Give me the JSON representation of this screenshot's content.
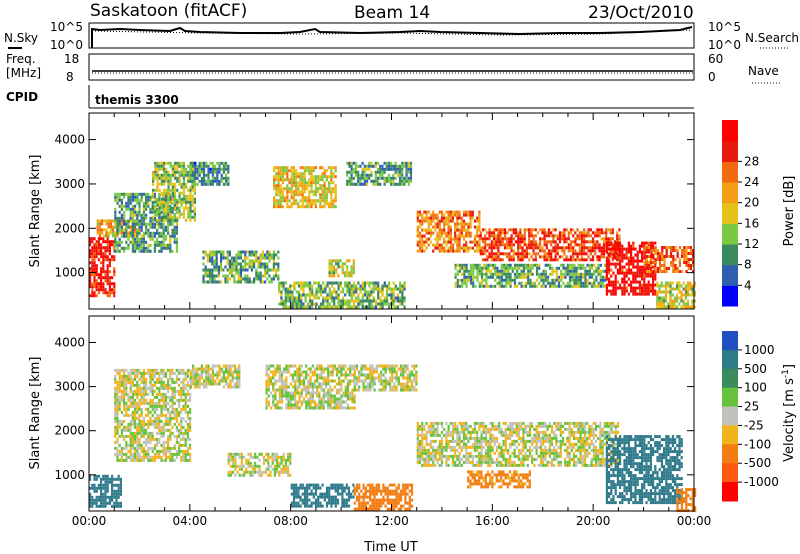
{
  "header": {
    "title": "Saskatoon (fitACF)",
    "beam": "Beam 14",
    "date": "23/Oct/2010"
  },
  "sky_panel": {
    "left_label": "N.Sky",
    "left_top": "10^5",
    "left_bottom": "10^0",
    "right_top": "10^5",
    "right_bottom": "10^0",
    "right_label": "N.Search"
  },
  "freq_panel": {
    "left_label_1": "Freq.",
    "left_label_2": "[MHz]",
    "left_top": "18",
    "left_bottom": "8",
    "right_top": "60",
    "right_bottom": "0",
    "right_label": "Nave"
  },
  "cpid_panel": {
    "label": "CPID",
    "program": "themis 3300"
  },
  "colors": {
    "power_scale": [
      "#0000ff",
      "#2f5fb0",
      "#3a8a5e",
      "#7ac943",
      "#e6c21a",
      "#f59d16",
      "#f26a10",
      "#e81a0d",
      "#ff0000"
    ],
    "velocity_scale": [
      "#1f4fc0",
      "#2f7a8a",
      "#3b8c5c",
      "#66c23a",
      "#c2c2bc",
      "#f0b41e",
      "#f37d12",
      "#ff5a10",
      "#ff0000"
    ]
  },
  "chart_data": [
    {
      "type": "heatmap",
      "title": "",
      "quantity": "Power",
      "xlabel": "",
      "ylabel": "Slant Range [km]",
      "xlim_hours": [
        0,
        24
      ],
      "ylim_km": [
        180,
        4600
      ],
      "y_ticks": [
        "1000",
        "2000",
        "3000",
        "4000"
      ],
      "colorbar": {
        "label": "Power [dB]",
        "ticks": [
          "4",
          "8",
          "12",
          "16",
          "20",
          "24",
          "28"
        ],
        "range": [
          0,
          30
        ]
      },
      "regions": [
        {
          "t0": 0.0,
          "t1": 1.0,
          "r0": 500,
          "r1": 1800,
          "level": 26
        },
        {
          "t0": 0.3,
          "t1": 2.0,
          "r0": 1800,
          "r1": 2200,
          "level": 18
        },
        {
          "t0": 1.0,
          "t1": 3.5,
          "r0": 1500,
          "r1": 2800,
          "level": 9
        },
        {
          "t0": 2.5,
          "t1": 4.2,
          "r0": 2200,
          "r1": 3500,
          "level": 12
        },
        {
          "t0": 4.0,
          "t1": 5.5,
          "r0": 3000,
          "r1": 3500,
          "level": 8
        },
        {
          "t0": 7.3,
          "t1": 9.8,
          "r0": 2500,
          "r1": 3400,
          "level": 16
        },
        {
          "t0": 10.2,
          "t1": 12.8,
          "r0": 3000,
          "r1": 3500,
          "level": 9
        },
        {
          "t0": 4.5,
          "t1": 7.5,
          "r0": 800,
          "r1": 1500,
          "level": 10
        },
        {
          "t0": 7.5,
          "t1": 12.5,
          "r0": 250,
          "r1": 800,
          "level": 11
        },
        {
          "t0": 9.5,
          "t1": 10.5,
          "r0": 900,
          "r1": 1300,
          "level": 14
        },
        {
          "t0": 13.0,
          "t1": 15.5,
          "r0": 1500,
          "r1": 2400,
          "level": 20
        },
        {
          "t0": 15.5,
          "t1": 21.0,
          "r0": 1300,
          "r1": 2000,
          "level": 24
        },
        {
          "t0": 14.5,
          "t1": 20.5,
          "r0": 700,
          "r1": 1200,
          "level": 10
        },
        {
          "t0": 20.5,
          "t1": 22.5,
          "r0": 500,
          "r1": 1700,
          "level": 28
        },
        {
          "t0": 22.0,
          "t1": 24.0,
          "r0": 1000,
          "r1": 1600,
          "level": 22
        },
        {
          "t0": 22.5,
          "t1": 24.0,
          "r0": 200,
          "r1": 800,
          "level": 14
        }
      ]
    },
    {
      "type": "heatmap",
      "title": "",
      "quantity": "Velocity",
      "xlabel": "Time UT",
      "ylabel": "Slant Range [km]",
      "xlim_hours": [
        0,
        24
      ],
      "ylim_km": [
        180,
        4600
      ],
      "y_ticks": [
        "1000",
        "2000",
        "3000",
        "4000"
      ],
      "x_ticks": [
        "00:00",
        "04:00",
        "08:00",
        "12:00",
        "16:00",
        "20:00",
        "00:00"
      ],
      "colorbar": {
        "label": "Velocity [m s^-1]",
        "ticks": [
          "1000",
          "500",
          "100",
          "25",
          "-25",
          "-100",
          "-500",
          "-1000"
        ],
        "range": [
          -1000,
          1000
        ]
      },
      "regions": [
        {
          "t0": 0.0,
          "t1": 1.3,
          "r0": 300,
          "r1": 1000,
          "level": 300
        },
        {
          "t0": 1.0,
          "t1": 4.0,
          "r0": 1300,
          "r1": 3400,
          "level": 0
        },
        {
          "t0": 4.0,
          "t1": 6.0,
          "r0": 3000,
          "r1": 3500,
          "level": 0
        },
        {
          "t0": 7.0,
          "t1": 10.5,
          "r0": 2500,
          "r1": 3500,
          "level": 0
        },
        {
          "t0": 10.5,
          "t1": 13.0,
          "r0": 2900,
          "r1": 3500,
          "level": 0
        },
        {
          "t0": 5.5,
          "t1": 8.0,
          "r0": 1000,
          "r1": 1500,
          "level": 0
        },
        {
          "t0": 8.0,
          "t1": 10.5,
          "r0": 300,
          "r1": 800,
          "level": 200
        },
        {
          "t0": 10.5,
          "t1": 12.8,
          "r0": 250,
          "r1": 800,
          "level": -300
        },
        {
          "t0": 13.0,
          "t1": 21.0,
          "r0": 1200,
          "r1": 2200,
          "level": 0
        },
        {
          "t0": 15.0,
          "t1": 17.5,
          "r0": 700,
          "r1": 1100,
          "level": -150
        },
        {
          "t0": 20.5,
          "t1": 23.5,
          "r0": 400,
          "r1": 1900,
          "level": 400
        },
        {
          "t0": 23.3,
          "t1": 24.0,
          "r0": 200,
          "r1": 700,
          "level": -400
        }
      ]
    }
  ]
}
